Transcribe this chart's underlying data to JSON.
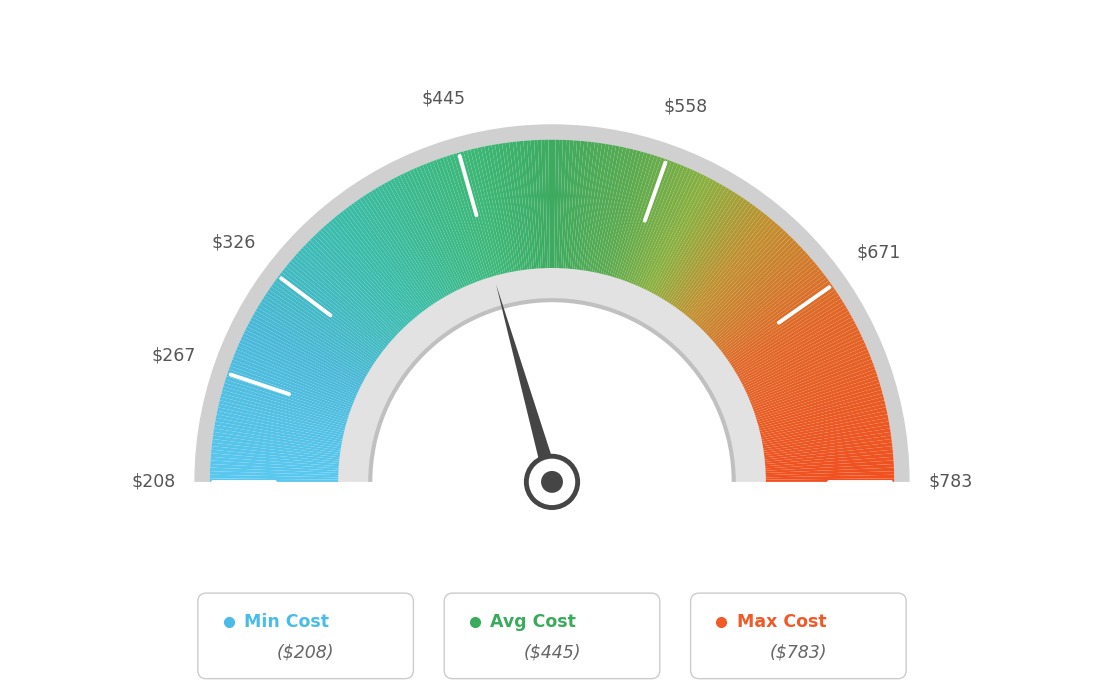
{
  "min_val": 208,
  "max_val": 783,
  "avg_val": 445,
  "tick_labels": [
    "$208",
    "$267",
    "$326",
    "$445",
    "$558",
    "$671",
    "$783"
  ],
  "tick_values": [
    208,
    267,
    326,
    445,
    558,
    671,
    783
  ],
  "legend": [
    {
      "label": "Min Cost",
      "value": "($208)",
      "color": "#4abce8"
    },
    {
      "label": "Avg Cost",
      "value": "($445)",
      "color": "#3aaa5c"
    },
    {
      "label": "Max Cost",
      "value": "($783)",
      "color": "#f05a28"
    }
  ],
  "bg_color": "#ffffff",
  "gauge_color_stops": [
    [
      0.0,
      "#5bc8f0"
    ],
    [
      0.15,
      "#4ab8d8"
    ],
    [
      0.28,
      "#3abcaa"
    ],
    [
      0.42,
      "#3db878"
    ],
    [
      0.5,
      "#3daa60"
    ],
    [
      0.58,
      "#5aaa50"
    ],
    [
      0.65,
      "#8ab040"
    ],
    [
      0.72,
      "#c09030"
    ],
    [
      0.82,
      "#e06828"
    ],
    [
      1.0,
      "#f05020"
    ]
  ],
  "needle_color": "#454545",
  "outer_border_color": "#d8d8d8",
  "inner_arc_color": "#e8e8e8",
  "inner_arc_dark": "#c8c8c8"
}
